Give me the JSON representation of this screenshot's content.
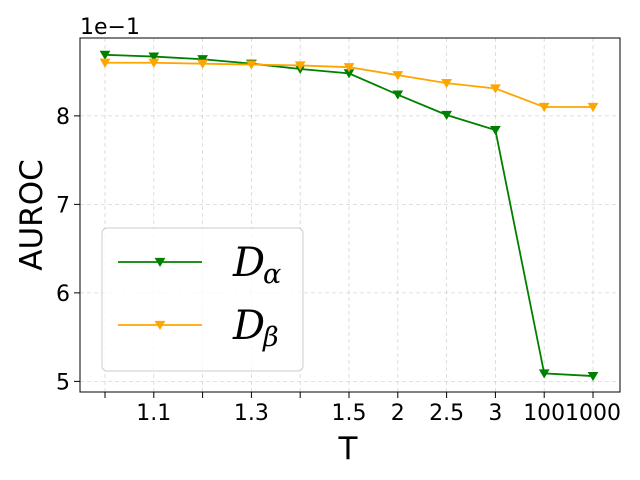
{
  "chart_data": {
    "type": "line",
    "title": "",
    "xlabel": "T",
    "ylabel": "AUROC",
    "y_offset_label": "1e−1",
    "ylim": [
      4.88,
      8.88
    ],
    "y_ticks": [
      "5",
      "6",
      "7",
      "8"
    ],
    "y_tick_values": [
      5,
      6,
      7,
      8
    ],
    "x": [
      1.0,
      1.1,
      1.2,
      1.3,
      1.4,
      1.5,
      2,
      2.5,
      3,
      100,
      1000
    ],
    "x_tick_labels": [
      "",
      "1.1",
      "",
      "1.3",
      "",
      "1.5",
      "2",
      "2.5",
      "3",
      "100",
      "1000"
    ],
    "grid": true,
    "legend_position": "center-left",
    "series": [
      {
        "name": "D",
        "subscript": "α",
        "color": "#008000",
        "marker": "triangle-down",
        "values": [
          8.69,
          8.67,
          8.64,
          8.59,
          8.53,
          8.48,
          8.24,
          8.01,
          7.84,
          5.09,
          5.06
        ]
      },
      {
        "name": "D",
        "subscript": "β",
        "color": "#FFA500",
        "marker": "triangle-down",
        "values": [
          8.6,
          8.6,
          8.59,
          8.58,
          8.57,
          8.55,
          8.46,
          8.37,
          8.31,
          8.1,
          8.1
        ]
      }
    ]
  }
}
